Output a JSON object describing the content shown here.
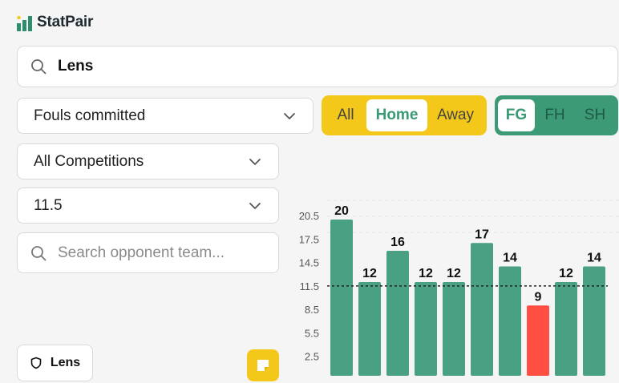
{
  "app": {
    "name": "StatPair"
  },
  "search": {
    "value": "Lens",
    "icon": "search-icon"
  },
  "filters": {
    "stat": "Fouls committed",
    "competition": "All Competitions",
    "line": "11.5",
    "opponent_placeholder": "Search opponent team..."
  },
  "venue_toggle": {
    "options": [
      "All",
      "Home",
      "Away"
    ],
    "selected": "Home"
  },
  "half_toggle": {
    "options": [
      "FG",
      "FH",
      "SH"
    ],
    "selected": "FG"
  },
  "team_chip": {
    "label": "Lens",
    "icon": "shield-icon"
  },
  "colors": {
    "bar_over": "#4aa082",
    "bar_under": "#ff4e42",
    "yellow": "#f4c81b",
    "green": "#3d9a76"
  },
  "chart_data": {
    "type": "bar",
    "values": [
      20,
      12,
      16,
      12,
      12,
      17,
      14,
      9,
      12,
      14
    ],
    "threshold": 11.5,
    "yticks": [
      2.5,
      5.5,
      8.5,
      11.5,
      14.5,
      17.5,
      20.5
    ],
    "ylim": [
      0,
      22
    ],
    "title": "",
    "xlabel": "",
    "ylabel": ""
  }
}
